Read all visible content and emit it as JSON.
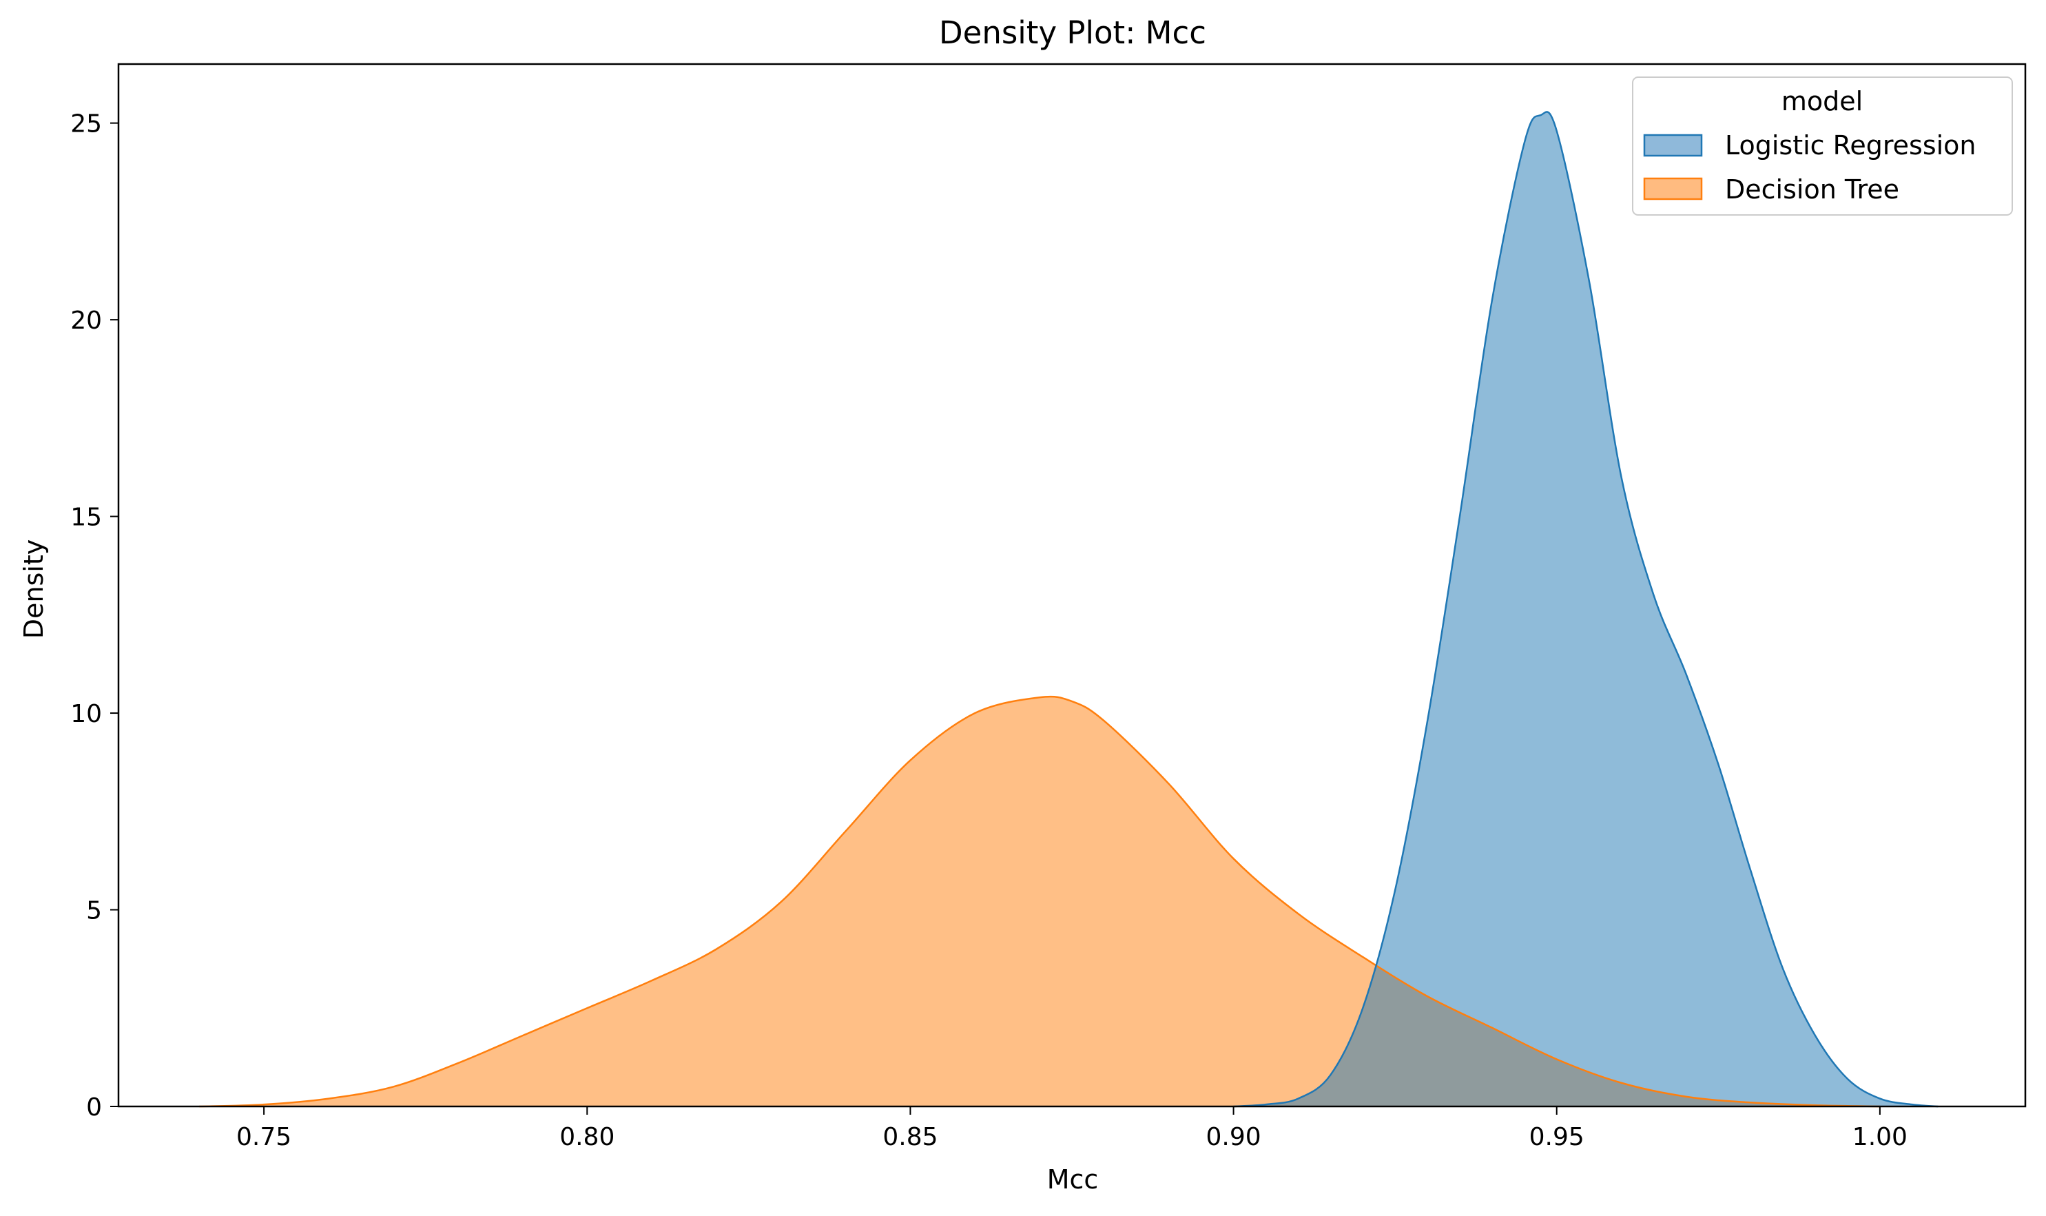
{
  "chart_data": {
    "type": "area",
    "title": "Density Plot: Mcc",
    "xlabel": "Mcc",
    "ylabel": "Density",
    "xlim": [
      0.7275,
      1.0225
    ],
    "ylim": [
      0,
      26.5
    ],
    "xticks": [
      0.75,
      0.8,
      0.85,
      0.9,
      0.95,
      1.0
    ],
    "xtick_labels": [
      "0.75",
      "0.80",
      "0.85",
      "0.90",
      "0.95",
      "1.00"
    ],
    "yticks": [
      0,
      5,
      10,
      15,
      20,
      25
    ],
    "ytick_labels": [
      "0",
      "5",
      "10",
      "15",
      "20",
      "25"
    ],
    "grid": false,
    "legend": {
      "title": "model",
      "placement": "top-right"
    },
    "series": [
      {
        "name": "Logistic Regression",
        "color": "#1f77b4",
        "fill": "#8fb9da",
        "x": [
          0.9,
          0.905,
          0.91,
          0.915,
          0.92,
          0.925,
          0.93,
          0.935,
          0.94,
          0.945,
          0.9475,
          0.95,
          0.955,
          0.96,
          0.965,
          0.97,
          0.975,
          0.98,
          0.985,
          0.99,
          0.995,
          1.0,
          1.005,
          1.009
        ],
        "y": [
          0.0,
          0.05,
          0.2,
          0.8,
          2.5,
          5.5,
          9.8,
          15.0,
          20.5,
          24.5,
          25.2,
          24.8,
          21.0,
          16.0,
          13.0,
          11.0,
          8.7,
          6.0,
          3.5,
          1.8,
          0.7,
          0.2,
          0.05,
          0.0
        ]
      },
      {
        "name": "Decision Tree",
        "color": "#ff7f0e",
        "fill": "#ffbb80",
        "x": [
          0.74,
          0.75,
          0.76,
          0.77,
          0.78,
          0.79,
          0.8,
          0.81,
          0.82,
          0.83,
          0.84,
          0.85,
          0.86,
          0.87,
          0.875,
          0.88,
          0.89,
          0.9,
          0.91,
          0.92,
          0.93,
          0.94,
          0.95,
          0.96,
          0.97,
          0.98,
          0.99,
          1.0
        ],
        "y": [
          0.0,
          0.05,
          0.2,
          0.5,
          1.1,
          1.8,
          2.5,
          3.2,
          4.0,
          5.2,
          7.0,
          8.8,
          10.0,
          10.4,
          10.3,
          9.8,
          8.2,
          6.3,
          4.9,
          3.8,
          2.8,
          2.0,
          1.2,
          0.6,
          0.25,
          0.1,
          0.03,
          0.0
        ]
      }
    ]
  }
}
